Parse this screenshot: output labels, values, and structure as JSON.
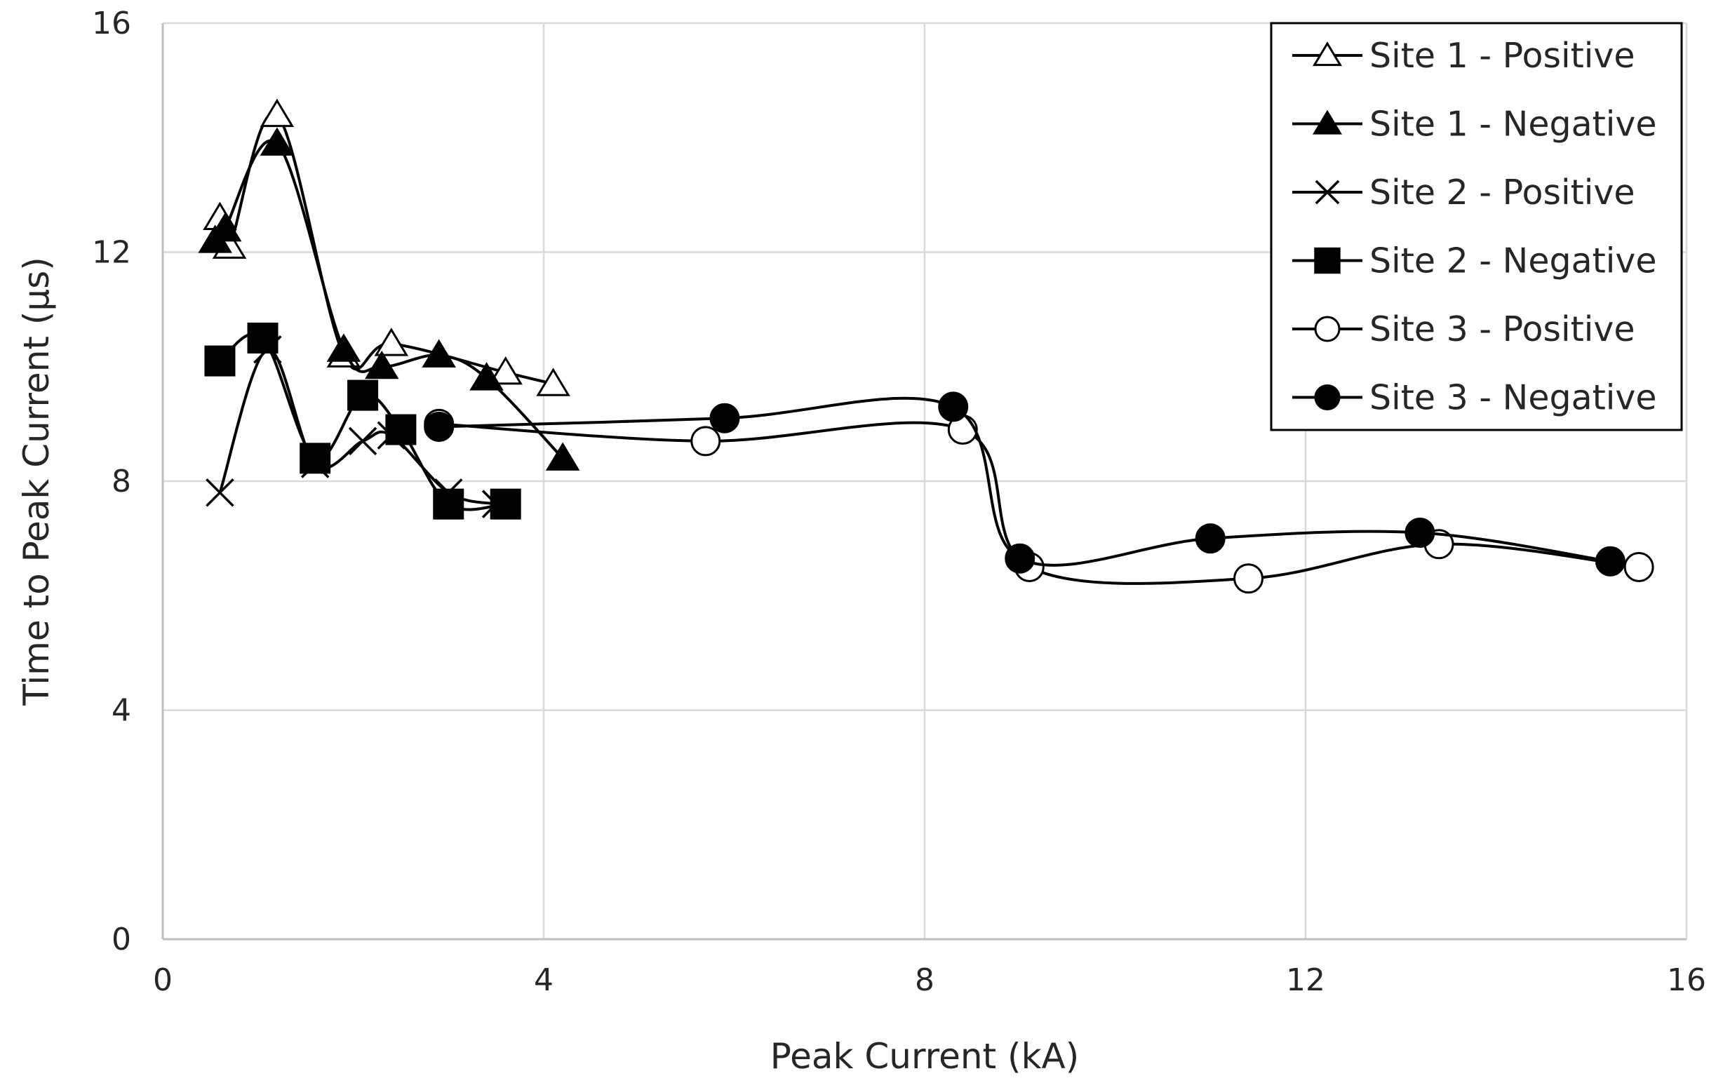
{
  "chart_data": {
    "type": "scatter",
    "title": "",
    "xlabel": "Peak Current (kA)",
    "ylabel": "Time to Peak Current (µs)",
    "xlim": [
      0,
      16
    ],
    "ylim": [
      0,
      16
    ],
    "xticks": [
      0,
      4,
      8,
      12,
      16
    ],
    "yticks": [
      0,
      4,
      8,
      12,
      16
    ],
    "grid": true,
    "smoothed_lines": true,
    "legend_position": "top-right",
    "series": [
      {
        "name": "Site 1 - Positive",
        "marker": "open-triangle",
        "points": [
          [
            0.6,
            12.6
          ],
          [
            0.7,
            12.1
          ],
          [
            1.2,
            14.4
          ],
          [
            1.9,
            10.2
          ],
          [
            2.4,
            10.4
          ],
          [
            3.6,
            9.9
          ],
          [
            4.1,
            9.7
          ]
        ]
      },
      {
        "name": "Site 1 - Negative",
        "marker": "filled-triangle",
        "points": [
          [
            0.55,
            12.2
          ],
          [
            0.65,
            12.4
          ],
          [
            1.2,
            13.9
          ],
          [
            1.9,
            10.3
          ],
          [
            2.3,
            10.0
          ],
          [
            2.9,
            10.2
          ],
          [
            3.4,
            9.8
          ],
          [
            4.2,
            8.4
          ]
        ]
      },
      {
        "name": "Site 2 - Positive",
        "marker": "x",
        "points": [
          [
            0.6,
            7.8
          ],
          [
            1.1,
            10.3
          ],
          [
            1.6,
            8.3
          ],
          [
            2.1,
            8.7
          ],
          [
            2.4,
            8.8
          ],
          [
            3.0,
            7.8
          ],
          [
            3.5,
            7.6
          ]
        ]
      },
      {
        "name": "Site 2 - Negative",
        "marker": "filled-square",
        "points": [
          [
            0.6,
            10.1
          ],
          [
            1.05,
            10.5
          ],
          [
            1.6,
            8.4
          ],
          [
            2.1,
            9.5
          ],
          [
            2.5,
            8.9
          ],
          [
            3.0,
            7.6
          ],
          [
            3.6,
            7.6
          ]
        ]
      },
      {
        "name": "Site 3 - Positive",
        "marker": "open-circle",
        "points": [
          [
            2.9,
            9.0
          ],
          [
            5.7,
            8.7
          ],
          [
            8.4,
            8.9
          ],
          [
            9.1,
            6.5
          ],
          [
            11.4,
            6.3
          ],
          [
            13.4,
            6.9
          ],
          [
            15.5,
            6.5
          ]
        ]
      },
      {
        "name": "Site 3 - Negative",
        "marker": "filled-circle",
        "points": [
          [
            2.9,
            8.95
          ],
          [
            5.9,
            9.1
          ],
          [
            8.3,
            9.3
          ],
          [
            9.0,
            6.65
          ],
          [
            11.0,
            7.0
          ],
          [
            13.2,
            7.1
          ],
          [
            15.2,
            6.6
          ]
        ]
      }
    ]
  }
}
